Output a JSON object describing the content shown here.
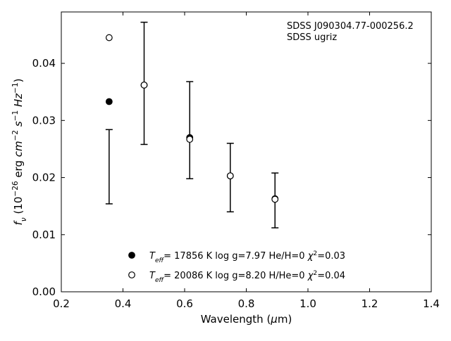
{
  "chart_data": {
    "type": "scatter",
    "annotations": [
      "SDSS J090304.77-000256.2",
      "SDSS ugriz"
    ],
    "xlabel_parts": [
      {
        "text": "Wavelength ("
      },
      {
        "text": "μ",
        "italic": true
      },
      {
        "text": "m)"
      }
    ],
    "ylabel_parts": [
      {
        "text": "f",
        "italic": true
      },
      {
        "text": "ν",
        "italic": true,
        "sub": true
      },
      {
        "text": " (10"
      },
      {
        "text": "−26",
        "sup": true
      },
      {
        "text": " erg "
      },
      {
        "text": "cm",
        "italic": true
      },
      {
        "text": "−2",
        "sup": true
      },
      {
        "text": " "
      },
      {
        "text": "s",
        "italic": true
      },
      {
        "text": "−1",
        "sup": true
      },
      {
        "text": " "
      },
      {
        "text": "Hz",
        "italic": true
      },
      {
        "text": "−1",
        "sup": true
      },
      {
        "text": ")"
      }
    ],
    "xlim": [
      0.2,
      1.4
    ],
    "ylim": [
      0.0,
      0.049
    ],
    "xticks": [
      0.2,
      0.4,
      0.6,
      0.8,
      1.0,
      1.2,
      1.4
    ],
    "xtick_labels": [
      "0.2",
      "0.4",
      "0.6",
      "0.8",
      "1.0",
      "1.2",
      "1.4"
    ],
    "yticks": [
      0.0,
      0.01,
      0.02,
      0.03,
      0.04
    ],
    "ytick_labels": [
      "0.00",
      "0.01",
      "0.02",
      "0.03",
      "0.04"
    ],
    "grid": false,
    "legend_position": "bottom-center",
    "observed": {
      "x": [
        0.3551,
        0.4686,
        0.6165,
        0.7481,
        0.8931
      ],
      "y": [
        0.0219,
        0.0365,
        0.0283,
        0.02,
        0.016
      ],
      "yerr": [
        0.0065,
        0.0107,
        0.0085,
        0.006,
        0.0048
      ],
      "color": "#000000"
    },
    "series": [
      {
        "marker": "filled-circle",
        "color": "#000000",
        "legend_parts": [
          {
            "text": "T",
            "italic": true
          },
          {
            "text": "eff",
            "italic": true,
            "sub": true
          },
          {
            "text": "= 17856 K  log g=7.97  He/H=0  "
          },
          {
            "text": "χ",
            "italic": true
          },
          {
            "text": "2",
            "sup": true
          },
          {
            "text": "=0.03"
          }
        ],
        "x": [
          0.3551,
          0.4686,
          0.6165,
          0.7481,
          0.8931
        ],
        "y": [
          0.0333,
          0.0362,
          0.027,
          0.0203,
          0.0163
        ]
      },
      {
        "marker": "open-circle",
        "color": "#000000",
        "legend_parts": [
          {
            "text": "T",
            "italic": true
          },
          {
            "text": "eff",
            "italic": true,
            "sub": true
          },
          {
            "text": "= 20086 K  log g=8.20  H/He=0  "
          },
          {
            "text": "χ",
            "italic": true
          },
          {
            "text": "2",
            "sup": true
          },
          {
            "text": "=0.04"
          }
        ],
        "x": [
          0.3551,
          0.4686,
          0.6165,
          0.7481,
          0.8931
        ],
        "y": [
          0.0445,
          0.0362,
          0.0267,
          0.0203,
          0.0162
        ]
      }
    ]
  }
}
